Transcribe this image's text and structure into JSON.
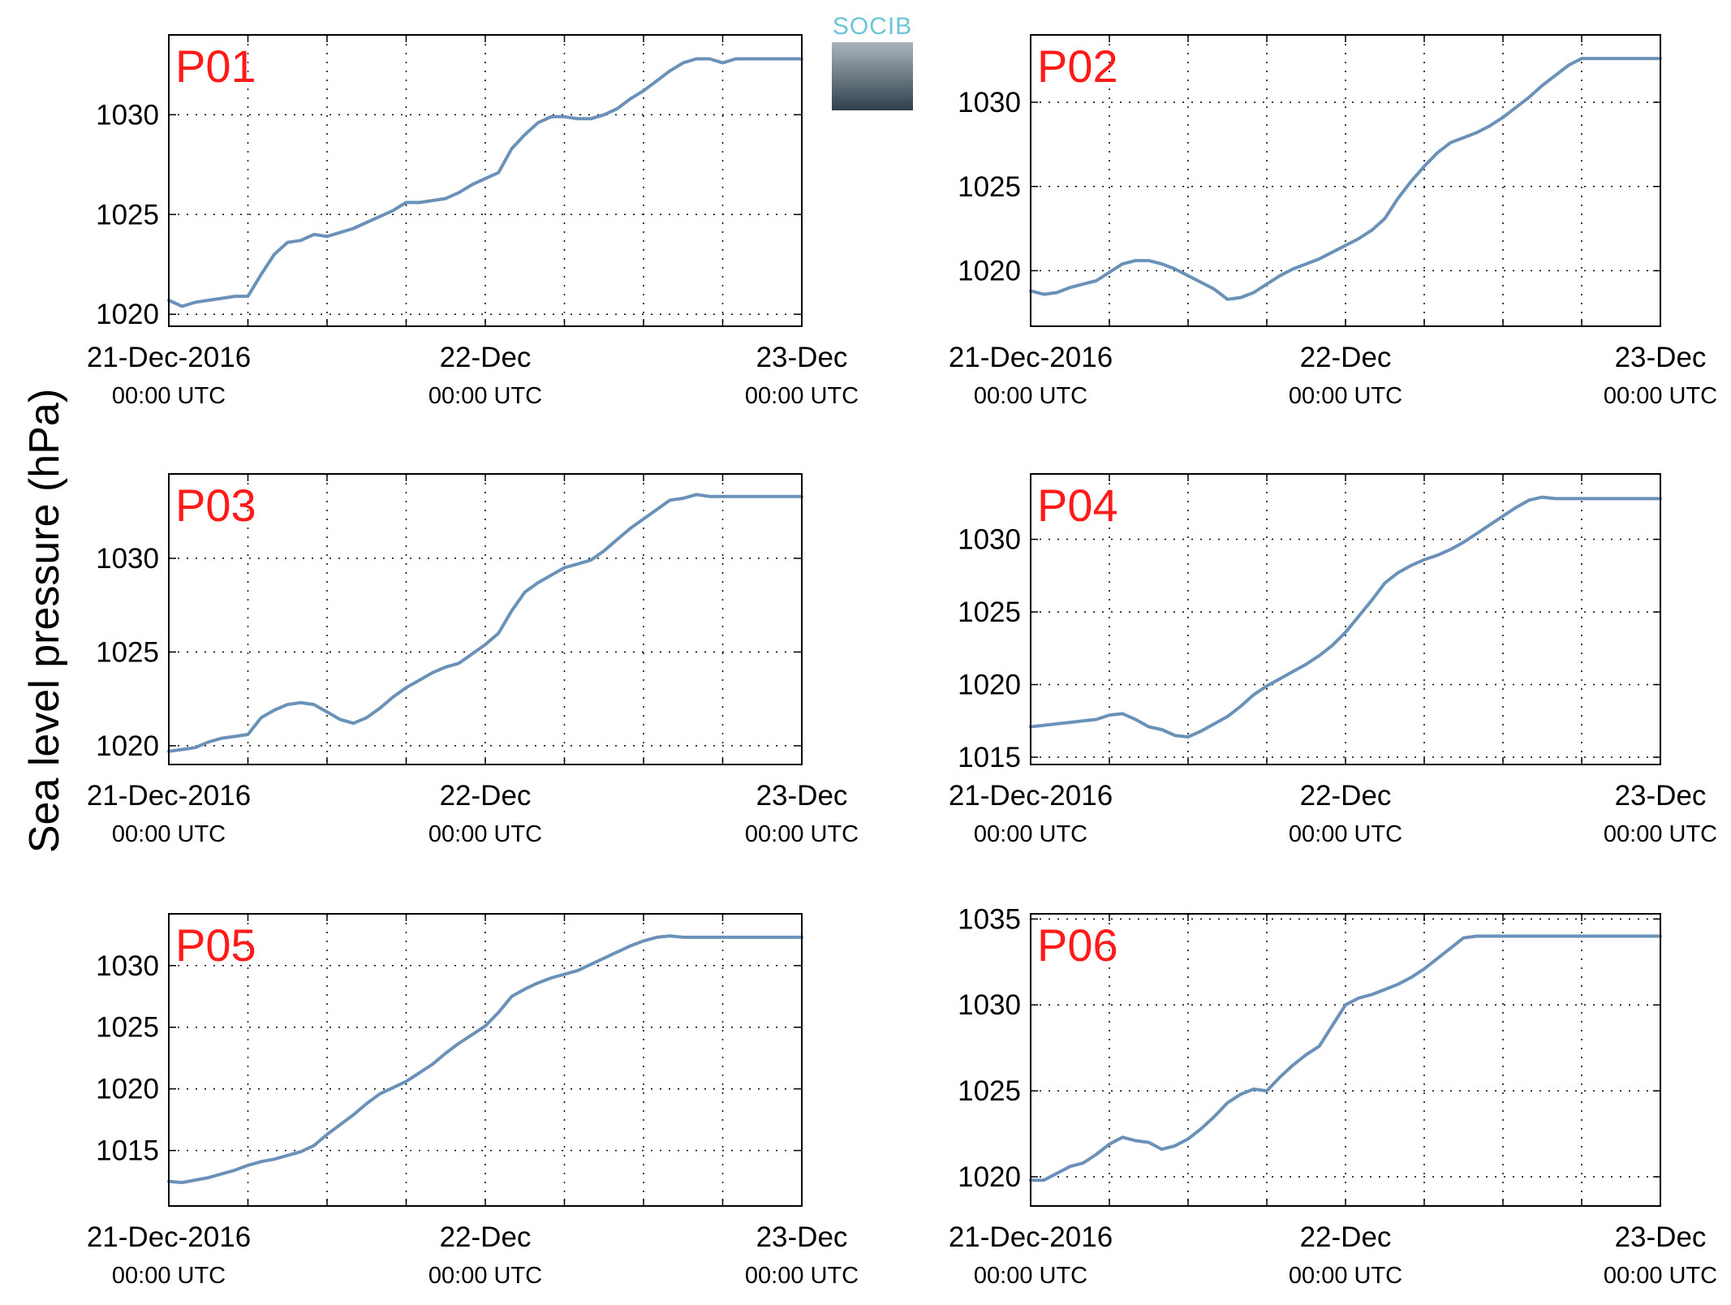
{
  "figure": {
    "ylabel": "Sea level pressure (hPa)",
    "logo_text": "SOCIB",
    "line_color": "#6a92b8",
    "panel_label_color": "#ff1a1a"
  },
  "chart_data": [
    {
      "type": "line",
      "panel": "P01",
      "xlim": [
        0,
        48
      ],
      "ylim": [
        1019.4,
        1034.0
      ],
      "yticks": [
        1020,
        1025,
        1030
      ],
      "xticks": [
        {
          "top": "21-Dec-2016",
          "bottom": "00:00 UTC"
        },
        {
          "top": "22-Dec",
          "bottom": "00:00 UTC"
        },
        {
          "top": "23-Dec",
          "bottom": "00:00 UTC"
        }
      ],
      "grid": true,
      "x": [
        0,
        1,
        2,
        3,
        4,
        5,
        6,
        7,
        8,
        9,
        10,
        11,
        12,
        13,
        14,
        15,
        16,
        17,
        18,
        19,
        20,
        21,
        22,
        23,
        24,
        25,
        26,
        27,
        28,
        29,
        30,
        31,
        32,
        33,
        34,
        35,
        36,
        37,
        38,
        39,
        40,
        41,
        42,
        43,
        44,
        45,
        46,
        47,
        48
      ],
      "values": [
        1020.7,
        1020.4,
        1020.6,
        1020.7,
        1020.8,
        1020.9,
        1020.9,
        1022.0,
        1023.0,
        1023.6,
        1023.7,
        1024.0,
        1023.9,
        1024.1,
        1024.3,
        1024.6,
        1024.9,
        1025.2,
        1025.6,
        1025.6,
        1025.7,
        1025.8,
        1026.1,
        1026.5,
        1026.8,
        1027.1,
        1028.3,
        1029.0,
        1029.6,
        1029.9,
        1029.9,
        1029.8,
        1029.8,
        1030.0,
        1030.3,
        1030.8,
        1031.2,
        1031.7,
        1032.2,
        1032.6,
        1032.8,
        1032.8,
        1032.6,
        1032.8,
        1032.8,
        1032.8,
        1032.8,
        1032.8,
        1032.8
      ]
    },
    {
      "type": "line",
      "panel": "P02",
      "xlim": [
        0,
        48
      ],
      "ylim": [
        1016.7,
        1034.0
      ],
      "yticks": [
        1020,
        1025,
        1030
      ],
      "xticks": [
        {
          "top": "21-Dec-2016",
          "bottom": "00:00 UTC"
        },
        {
          "top": "22-Dec",
          "bottom": "00:00 UTC"
        },
        {
          "top": "23-Dec",
          "bottom": "00:00 UTC"
        }
      ],
      "grid": true,
      "x": [
        0,
        1,
        2,
        3,
        4,
        5,
        6,
        7,
        8,
        9,
        10,
        11,
        12,
        13,
        14,
        15,
        16,
        17,
        18,
        19,
        20,
        21,
        22,
        23,
        24,
        25,
        26,
        27,
        28,
        29,
        30,
        31,
        32,
        33,
        34,
        35,
        36,
        37,
        38,
        39,
        40,
        41,
        42,
        43,
        44,
        45,
        46,
        47,
        48
      ],
      "values": [
        1018.8,
        1018.6,
        1018.7,
        1019.0,
        1019.2,
        1019.4,
        1019.9,
        1020.4,
        1020.6,
        1020.6,
        1020.4,
        1020.1,
        1019.7,
        1019.3,
        1018.9,
        1018.3,
        1018.4,
        1018.7,
        1019.2,
        1019.7,
        1020.1,
        1020.4,
        1020.7,
        1021.1,
        1021.5,
        1021.9,
        1022.4,
        1023.1,
        1024.3,
        1025.3,
        1026.2,
        1027.0,
        1027.6,
        1027.9,
        1028.2,
        1028.6,
        1029.1,
        1029.7,
        1030.3,
        1031.0,
        1031.6,
        1032.2,
        1032.6,
        1032.6,
        1032.6,
        1032.6,
        1032.6,
        1032.6,
        1032.6
      ]
    },
    {
      "type": "line",
      "panel": "P03",
      "xlim": [
        0,
        48
      ],
      "ylim": [
        1019.0,
        1034.5
      ],
      "yticks": [
        1020,
        1025,
        1030
      ],
      "xticks": [
        {
          "top": "21-Dec-2016",
          "bottom": "00:00 UTC"
        },
        {
          "top": "22-Dec",
          "bottom": "00:00 UTC"
        },
        {
          "top": "23-Dec",
          "bottom": "00:00 UTC"
        }
      ],
      "grid": true,
      "x": [
        0,
        1,
        2,
        3,
        4,
        5,
        6,
        7,
        8,
        9,
        10,
        11,
        12,
        13,
        14,
        15,
        16,
        17,
        18,
        19,
        20,
        21,
        22,
        23,
        24,
        25,
        26,
        27,
        28,
        29,
        30,
        31,
        32,
        33,
        34,
        35,
        36,
        37,
        38,
        39,
        40,
        41,
        42,
        43,
        44,
        45,
        46,
        47,
        48
      ],
      "values": [
        1019.7,
        1019.8,
        1019.9,
        1020.2,
        1020.4,
        1020.5,
        1020.6,
        1021.5,
        1021.9,
        1022.2,
        1022.3,
        1022.2,
        1021.8,
        1021.4,
        1021.2,
        1021.5,
        1022.0,
        1022.6,
        1023.1,
        1023.5,
        1023.9,
        1024.2,
        1024.4,
        1024.9,
        1025.4,
        1026.0,
        1027.2,
        1028.2,
        1028.7,
        1029.1,
        1029.5,
        1029.7,
        1029.9,
        1030.4,
        1031.0,
        1031.6,
        1032.1,
        1032.6,
        1033.1,
        1033.2,
        1033.4,
        1033.3,
        1033.3,
        1033.3,
        1033.3,
        1033.3,
        1033.3,
        1033.3,
        1033.3
      ]
    },
    {
      "type": "line",
      "panel": "P04",
      "xlim": [
        0,
        48
      ],
      "ylim": [
        1014.5,
        1034.5
      ],
      "yticks": [
        1015,
        1020,
        1025,
        1030
      ],
      "xticks": [
        {
          "top": "21-Dec-2016",
          "bottom": "00:00 UTC"
        },
        {
          "top": "22-Dec",
          "bottom": "00:00 UTC"
        },
        {
          "top": "23-Dec",
          "bottom": "00:00 UTC"
        }
      ],
      "grid": true,
      "x": [
        0,
        1,
        2,
        3,
        4,
        5,
        6,
        7,
        8,
        9,
        10,
        11,
        12,
        13,
        14,
        15,
        16,
        17,
        18,
        19,
        20,
        21,
        22,
        23,
        24,
        25,
        26,
        27,
        28,
        29,
        30,
        31,
        32,
        33,
        34,
        35,
        36,
        37,
        38,
        39,
        40,
        41,
        42,
        43,
        44,
        45,
        46,
        47,
        48
      ],
      "values": [
        1017.1,
        1017.2,
        1017.3,
        1017.4,
        1017.5,
        1017.6,
        1017.9,
        1018.0,
        1017.6,
        1017.1,
        1016.9,
        1016.5,
        1016.4,
        1016.8,
        1017.3,
        1017.8,
        1018.5,
        1019.3,
        1019.9,
        1020.4,
        1020.9,
        1021.4,
        1022.0,
        1022.7,
        1023.6,
        1024.7,
        1025.8,
        1027.0,
        1027.7,
        1028.2,
        1028.6,
        1028.9,
        1029.3,
        1029.8,
        1030.4,
        1031.0,
        1031.6,
        1032.2,
        1032.7,
        1032.9,
        1032.8,
        1032.8,
        1032.8,
        1032.8,
        1032.8,
        1032.8,
        1032.8,
        1032.8,
        1032.8
      ]
    },
    {
      "type": "line",
      "panel": "P05",
      "xlim": [
        0,
        48
      ],
      "ylim": [
        1010.5,
        1034.2
      ],
      "yticks": [
        1015,
        1020,
        1025,
        1030
      ],
      "xticks": [
        {
          "top": "21-Dec-2016",
          "bottom": "00:00 UTC"
        },
        {
          "top": "22-Dec",
          "bottom": "00:00 UTC"
        },
        {
          "top": "23-Dec",
          "bottom": "00:00 UTC"
        }
      ],
      "grid": true,
      "x": [
        0,
        1,
        2,
        3,
        4,
        5,
        6,
        7,
        8,
        9,
        10,
        11,
        12,
        13,
        14,
        15,
        16,
        17,
        18,
        19,
        20,
        21,
        22,
        23,
        24,
        25,
        26,
        27,
        28,
        29,
        30,
        31,
        32,
        33,
        34,
        35,
        36,
        37,
        38,
        39,
        40,
        41,
        42,
        43,
        44,
        45,
        46,
        47,
        48
      ],
      "values": [
        1012.5,
        1012.4,
        1012.6,
        1012.8,
        1013.1,
        1013.4,
        1013.8,
        1014.1,
        1014.3,
        1014.6,
        1014.9,
        1015.4,
        1016.3,
        1017.1,
        1017.9,
        1018.8,
        1019.6,
        1020.1,
        1020.6,
        1021.3,
        1022.0,
        1022.9,
        1023.7,
        1024.4,
        1025.1,
        1026.2,
        1027.5,
        1028.1,
        1028.6,
        1029.0,
        1029.3,
        1029.6,
        1030.1,
        1030.6,
        1031.1,
        1031.6,
        1032.0,
        1032.3,
        1032.4,
        1032.3,
        1032.3,
        1032.3,
        1032.3,
        1032.3,
        1032.3,
        1032.3,
        1032.3,
        1032.3,
        1032.3
      ]
    },
    {
      "type": "line",
      "panel": "P06",
      "xlim": [
        0,
        48
      ],
      "ylim": [
        1018.3,
        1035.3
      ],
      "yticks": [
        1020,
        1025,
        1030,
        1035
      ],
      "xticks": [
        {
          "top": "21-Dec-2016",
          "bottom": "00:00 UTC"
        },
        {
          "top": "22-Dec",
          "bottom": "00:00 UTC"
        },
        {
          "top": "23-Dec",
          "bottom": "00:00 UTC"
        }
      ],
      "grid": true,
      "x": [
        0,
        1,
        2,
        3,
        4,
        5,
        6,
        7,
        8,
        9,
        10,
        11,
        12,
        13,
        14,
        15,
        16,
        17,
        18,
        19,
        20,
        21,
        22,
        23,
        24,
        25,
        26,
        27,
        28,
        29,
        30,
        31,
        32,
        33,
        34,
        35,
        36,
        37,
        38,
        39,
        40,
        41,
        42,
        43,
        44,
        45,
        46,
        47,
        48
      ],
      "values": [
        1019.8,
        1019.8,
        1020.2,
        1020.6,
        1020.8,
        1021.3,
        1021.9,
        1022.3,
        1022.1,
        1022.0,
        1021.6,
        1021.8,
        1022.2,
        1022.8,
        1023.5,
        1024.3,
        1024.8,
        1025.1,
        1025.0,
        1025.8,
        1026.5,
        1027.1,
        1027.6,
        1028.8,
        1030.0,
        1030.4,
        1030.6,
        1030.9,
        1031.2,
        1031.6,
        1032.1,
        1032.7,
        1033.3,
        1033.9,
        1034.0,
        1034.0,
        1034.0,
        1034.0,
        1034.0,
        1034.0,
        1034.0,
        1034.0,
        1034.0,
        1034.0,
        1034.0,
        1034.0,
        1034.0,
        1034.0,
        1034.0
      ]
    }
  ]
}
